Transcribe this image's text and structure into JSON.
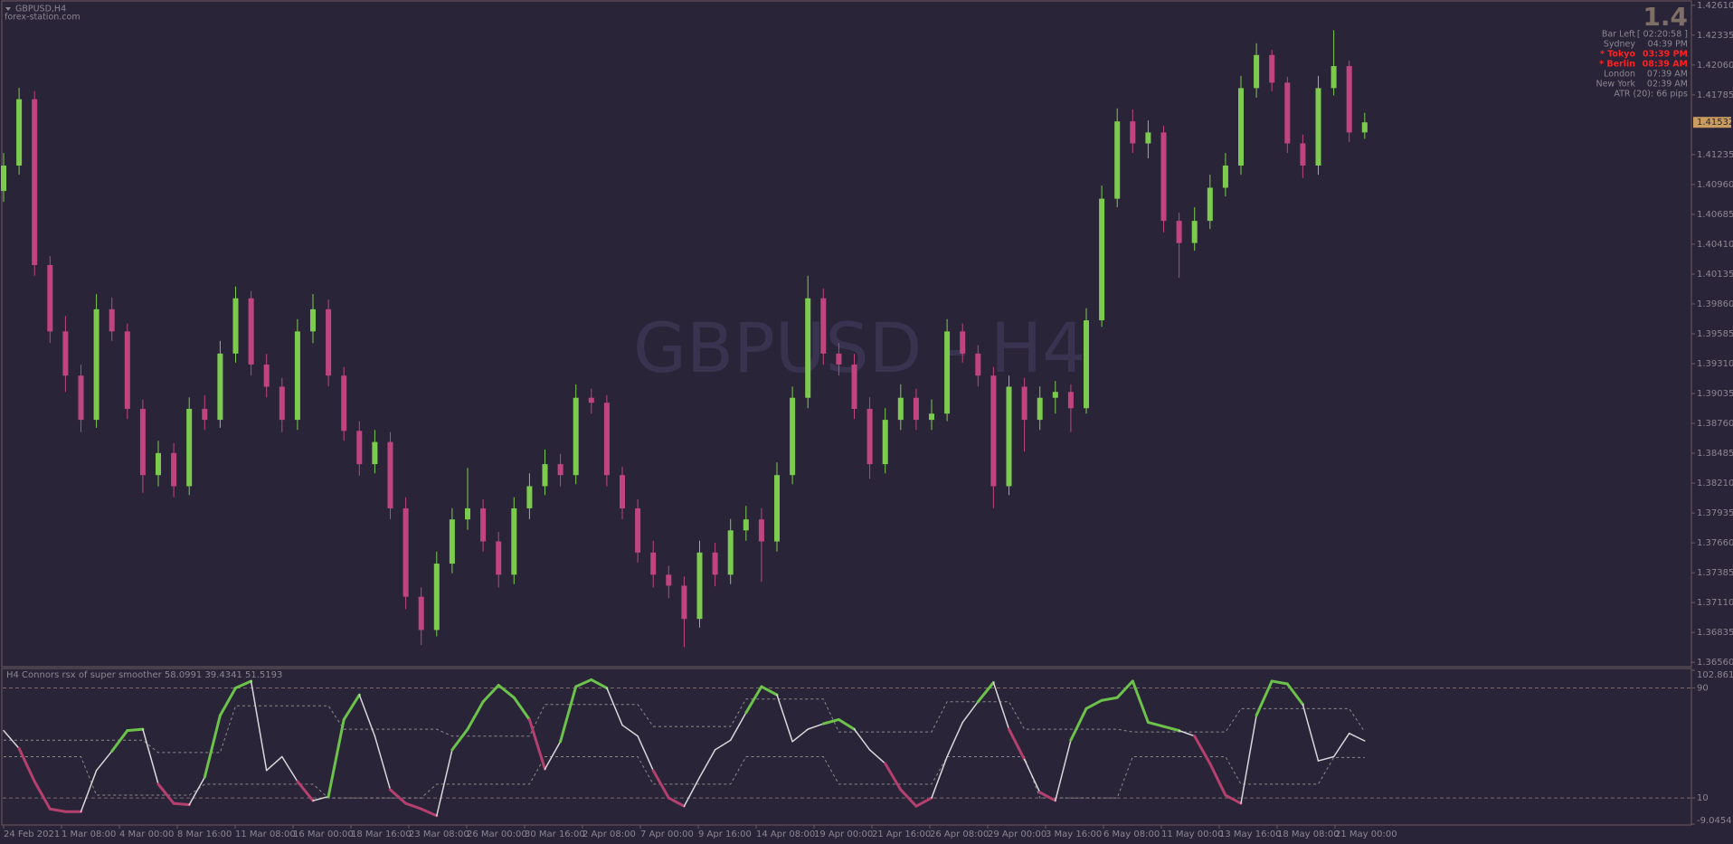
{
  "header": {
    "symbol": "GBPUSD,H4",
    "site": "forex-station.com",
    "watermark": "GBPUSD - H4"
  },
  "info_panel": {
    "big_value": "1.4",
    "rows": [
      [
        "Bar Left",
        "[ 02:20:58 ]"
      ],
      [
        "Sydney",
        "04:39 PM"
      ],
      [
        "* Tokyo",
        "03:39 PM"
      ],
      [
        "* Berlin",
        "08:39 AM"
      ],
      [
        "London",
        "07:39 AM"
      ],
      [
        "New York",
        "02:39 AM"
      ]
    ],
    "highlight_color": "#ff2020",
    "highlight_rows": [
      2,
      3
    ],
    "atr": "ATR (20): 66 pips"
  },
  "chart_data": [
    {
      "type": "candlestick",
      "up_color": "#7ccb4e",
      "down_color": "#c0457f",
      "ylim": [
        1.3652,
        1.4265
      ],
      "yticks": [
        {
          "value": 1.4261,
          "label": "1.42610"
        },
        1.42335,
        {
          "value": 1.4206,
          "label": "1.42060"
        },
        1.41785,
        1.41235,
        {
          "value": 1.4096,
          "label": "1.40960"
        },
        1.40685,
        {
          "value": 1.4041,
          "label": "1.40410"
        },
        1.40135,
        {
          "value": 1.3986,
          "label": "1.39860"
        },
        1.39585,
        {
          "value": 1.3931,
          "label": "1.39310"
        },
        1.39035,
        {
          "value": 1.3876,
          "label": "1.38760"
        },
        1.38485,
        {
          "value": 1.3821,
          "label": "1.38210"
        },
        1.37935,
        {
          "value": 1.3766,
          "label": "1.37660"
        },
        1.37385,
        {
          "value": 1.3711,
          "label": "1.37110"
        },
        1.36835,
        {
          "value": 1.3656,
          "label": "1.36560"
        }
      ],
      "open": [
        1.409,
        1.41134,
        1.41745,
        1.40218,
        1.39607,
        1.392,
        1.38793,
        1.39811,
        1.39607,
        1.38894,
        1.38284,
        1.38487,
        1.38182,
        1.38894,
        1.38793,
        1.39403,
        1.39912,
        1.39302,
        1.39098,
        1.38793,
        1.39607,
        1.39811,
        1.392,
        1.38691,
        1.38385,
        1.38589,
        1.37978,
        1.37164,
        1.36858,
        1.37469,
        1.37876,
        1.37978,
        1.37673,
        1.37367,
        1.37978,
        1.38182,
        1.38385,
        1.38284,
        1.38996,
        1.3895,
        1.38284,
        1.37978,
        1.37571,
        1.37367,
        1.37266,
        1.3696,
        1.37571,
        1.37367,
        1.37775,
        1.37876,
        1.37673,
        1.38284,
        1.38996,
        1.39912,
        1.39403,
        1.39302,
        1.38894,
        1.38385,
        1.38793,
        1.38996,
        1.38793,
        1.3885,
        1.39607,
        1.39403,
        1.392,
        1.38182,
        1.39098,
        1.38793,
        1.38996,
        1.3905,
        1.389,
        1.39709,
        1.40829,
        1.41541,
        1.41338,
        1.41439,
        1.40625,
        1.40421,
        1.40625,
        1.4093,
        1.41134,
        1.41847,
        1.42152,
        1.41897,
        1.41338,
        1.41134,
        1.41847,
        1.4205,
        1.41439
      ],
      "high": [
        1.4125,
        1.4185,
        1.4182,
        1.403,
        1.3975,
        1.393,
        1.3995,
        1.3992,
        1.3968,
        1.3898,
        1.386,
        1.3858,
        1.39,
        1.3902,
        1.3952,
        1.4002,
        1.3998,
        1.394,
        1.3918,
        1.3972,
        1.3995,
        1.399,
        1.3928,
        1.3878,
        1.387,
        1.3868,
        1.3808,
        1.3725,
        1.3758,
        1.3798,
        1.3835,
        1.3806,
        1.3776,
        1.3808,
        1.383,
        1.3852,
        1.3848,
        1.3912,
        1.3908,
        1.3902,
        1.3836,
        1.3806,
        1.3768,
        1.3745,
        1.3735,
        1.3768,
        1.3766,
        1.3788,
        1.38,
        1.3798,
        1.384,
        1.391,
        1.4012,
        1.4,
        1.395,
        1.394,
        1.39,
        1.389,
        1.3912,
        1.3908,
        1.3898,
        1.3972,
        1.3968,
        1.3948,
        1.3928,
        1.392,
        1.3918,
        1.391,
        1.3915,
        1.3912,
        1.3982,
        1.4095,
        1.4166,
        1.4165,
        1.4155,
        1.415,
        1.407,
        1.4075,
        1.4105,
        1.4125,
        1.4196,
        1.4226,
        1.422,
        1.4195,
        1.4142,
        1.4196,
        1.4238,
        1.421,
        1.4162
      ],
      "low": [
        1.408,
        1.4105,
        1.4012,
        1.395,
        1.3905,
        1.3868,
        1.3872,
        1.3952,
        1.388,
        1.3812,
        1.3818,
        1.3808,
        1.381,
        1.387,
        1.3872,
        1.3932,
        1.392,
        1.39,
        1.3868,
        1.387,
        1.395,
        1.391,
        1.386,
        1.3828,
        1.383,
        1.3788,
        1.3705,
        1.3672,
        1.368,
        1.3738,
        1.3778,
        1.3758,
        1.3725,
        1.3728,
        1.3788,
        1.381,
        1.3818,
        1.382,
        1.3885,
        1.3818,
        1.3788,
        1.3748,
        1.3725,
        1.3715,
        1.367,
        1.3688,
        1.3726,
        1.3728,
        1.3768,
        1.373,
        1.3758,
        1.382,
        1.389,
        1.393,
        1.392,
        1.388,
        1.3825,
        1.383,
        1.387,
        1.387,
        1.387,
        1.3878,
        1.3932,
        1.391,
        1.3798,
        1.381,
        1.385,
        1.387,
        1.3885,
        1.3868,
        1.3885,
        1.3965,
        1.4075,
        1.4125,
        1.412,
        1.4052,
        1.401,
        1.4035,
        1.4055,
        1.4085,
        1.4105,
        1.4176,
        1.4182,
        1.4125,
        1.4102,
        1.4105,
        1.4178,
        1.4135,
        1.4138
      ],
      "close": [
        1.41134,
        1.41745,
        1.40218,
        1.39607,
        1.392,
        1.38793,
        1.39811,
        1.39607,
        1.38894,
        1.38284,
        1.38487,
        1.38182,
        1.38894,
        1.38793,
        1.39403,
        1.39912,
        1.39302,
        1.39098,
        1.38793,
        1.39607,
        1.39811,
        1.392,
        1.38691,
        1.38385,
        1.38589,
        1.37978,
        1.37164,
        1.36858,
        1.37469,
        1.37876,
        1.37978,
        1.37673,
        1.37367,
        1.37978,
        1.38182,
        1.38385,
        1.38284,
        1.38996,
        1.3895,
        1.38284,
        1.37978,
        1.37571,
        1.37367,
        1.37266,
        1.3696,
        1.37571,
        1.37367,
        1.37775,
        1.37876,
        1.37673,
        1.38284,
        1.38996,
        1.39912,
        1.39403,
        1.39302,
        1.38894,
        1.38385,
        1.38793,
        1.38996,
        1.38793,
        1.3885,
        1.39607,
        1.39403,
        1.392,
        1.38182,
        1.39098,
        1.38793,
        1.38996,
        1.3905,
        1.389,
        1.39709,
        1.40829,
        1.41541,
        1.41338,
        1.41439,
        1.40625,
        1.40421,
        1.40625,
        1.4093,
        1.41134,
        1.41847,
        1.42152,
        1.41897,
        1.41338,
        1.41134,
        1.41847,
        1.4205,
        1.41439,
        1.41532
      ],
      "x_labels": [
        "24 Feb 2021",
        "1 Mar 08:00",
        "4 Mar 00:00",
        "8 Mar 16:00",
        "11 Mar 08:00",
        "16 Mar 00:00",
        "18 Mar 16:00",
        "23 Mar 08:00",
        "26 Mar 00:00",
        "30 Mar 16:00",
        "2 Apr 08:00",
        "7 Apr 00:00",
        "9 Apr 16:00",
        "14 Apr 08:00",
        "19 Apr 00:00",
        "21 Apr 16:00",
        "26 Apr 08:00",
        "29 Apr 00:00",
        "3 May 16:00",
        "6 May 08:00",
        "11 May 00:00",
        "13 May 16:00",
        "18 May 08:00",
        "21 May 00:00"
      ]
    },
    {
      "type": "line",
      "title": "H4 Connors rsx of super smoother 58.0991 39.4341 51.5193",
      "ylim": [
        -9.0454,
        102.8619
      ],
      "yticks": [
        102.8619,
        90,
        10,
        -9.0454
      ],
      "levels": [
        90,
        10
      ],
      "up_color": "#6cc24a",
      "down_color": "#b5406e",
      "series": [
        {
          "name": "rsx",
          "color": "#d8d8d8",
          "values": [
            59,
            46,
            22,
            2,
            0,
            0,
            30,
            44,
            59,
            60,
            20,
            6,
            5,
            25,
            70,
            90,
            95,
            30,
            40,
            22,
            8,
            11,
            67,
            85,
            55,
            16,
            6,
            2,
            -3,
            45,
            60,
            80,
            92,
            83,
            67,
            31,
            51,
            91,
            96,
            90,
            63,
            55,
            30,
            10,
            4,
            25,
            45,
            52,
            72,
            91,
            85,
            51,
            60,
            64,
            67,
            60,
            45,
            35,
            16,
            4,
            10,
            40,
            65,
            80,
            94,
            60,
            38,
            14,
            8,
            52,
            75,
            81,
            83,
            95,
            65,
            62,
            59,
            55,
            35,
            12,
            6,
            70,
            95,
            93,
            78,
            37,
            40,
            57,
            51.5193
          ]
        },
        {
          "name": "upper",
          "color": "#8a8a8a",
          "values": [
            52,
            52,
            52,
            52,
            52,
            52,
            52,
            52,
            52,
            52,
            43,
            43,
            43,
            43,
            43,
            77,
            77,
            77,
            77,
            77,
            77,
            77,
            60,
            60,
            60,
            60,
            60,
            60,
            60,
            55,
            55,
            55,
            55,
            55,
            55,
            78,
            78,
            78,
            78,
            78,
            78,
            78,
            62,
            62,
            62,
            62,
            62,
            62,
            82,
            82,
            82,
            82,
            82,
            82,
            58,
            58,
            58,
            58,
            58,
            58,
            58,
            80,
            80,
            80,
            80,
            80,
            60,
            60,
            60,
            60,
            60,
            60,
            60,
            58,
            58,
            58,
            58,
            58,
            58,
            58,
            75,
            75,
            75,
            75,
            75,
            75,
            75,
            75,
            58.0991
          ]
        },
        {
          "name": "lower",
          "color": "#8a8a8a",
          "values": [
            40,
            40,
            40,
            40,
            40,
            40,
            12,
            12,
            12,
            12,
            12,
            12,
            12,
            20,
            20,
            20,
            20,
            20,
            20,
            20,
            20,
            10,
            10,
            10,
            10,
            10,
            10,
            10,
            20,
            20,
            20,
            20,
            20,
            20,
            20,
            40,
            40,
            40,
            40,
            40,
            40,
            40,
            20,
            20,
            20,
            20,
            20,
            20,
            40,
            40,
            40,
            40,
            40,
            40,
            20,
            20,
            20,
            20,
            20,
            20,
            20,
            40,
            40,
            40,
            40,
            40,
            40,
            10,
            10,
            10,
            10,
            10,
            10,
            40,
            40,
            40,
            40,
            40,
            40,
            40,
            20,
            20,
            20,
            20,
            20,
            20,
            39.4341,
            39.4341,
            39.4341
          ]
        }
      ]
    }
  ]
}
